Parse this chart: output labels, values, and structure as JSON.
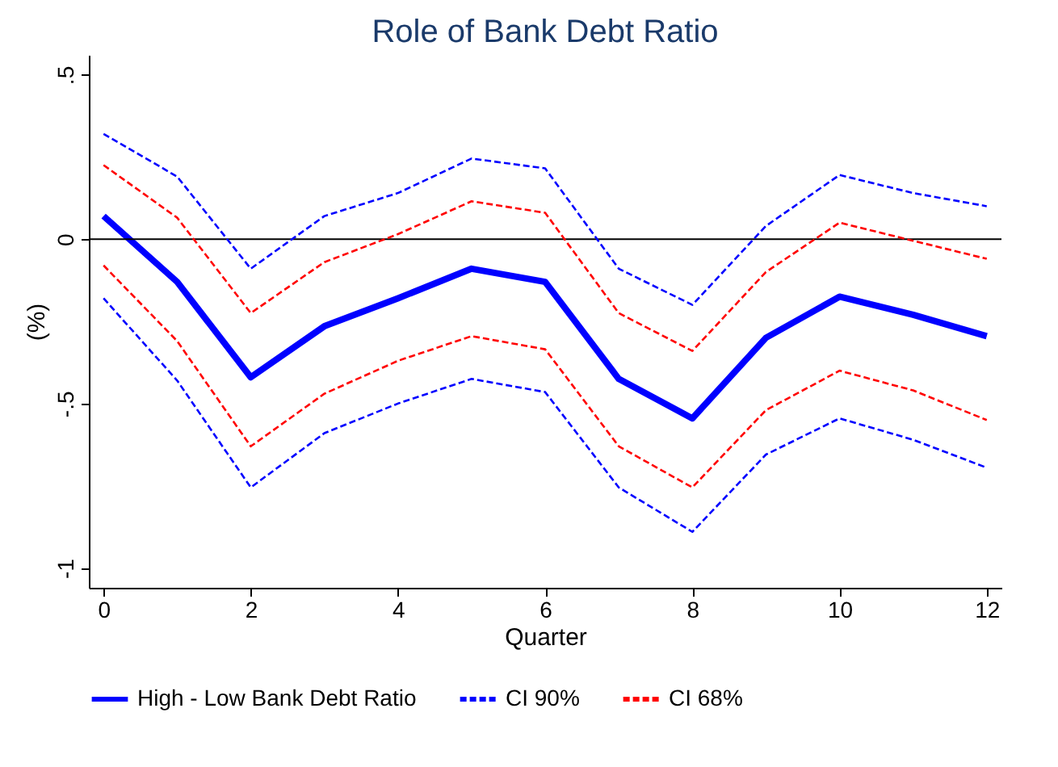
{
  "chart_data": {
    "type": "line",
    "title": "Role of Bank Debt Ratio",
    "xlabel": "Quarter",
    "ylabel": "(%)",
    "x": [
      0,
      1,
      2,
      3,
      4,
      5,
      6,
      7,
      8,
      9,
      10,
      11,
      12
    ],
    "series": [
      {
        "name": "High - Low Bank Debt Ratio",
        "color": "#0000ff",
        "line_style": "solid",
        "values": [
          0.07,
          -0.13,
          -0.42,
          -0.265,
          -0.18,
          -0.09,
          -0.13,
          -0.425,
          -0.545,
          -0.3,
          -0.175,
          -0.23,
          -0.295
        ]
      },
      {
        "name": "CI 90%",
        "color": "#0000ff",
        "line_style": "dashed",
        "values": [
          0.32,
          0.19,
          -0.09,
          0.07,
          0.14,
          0.245,
          0.215,
          -0.09,
          -0.2,
          0.04,
          0.195,
          0.14,
          0.1
        ]
      },
      {
        "color": "#0000ff",
        "line_style": "dashed",
        "values": [
          -0.18,
          -0.43,
          -0.755,
          -0.59,
          -0.5,
          -0.425,
          -0.465,
          -0.755,
          -0.89,
          -0.655,
          -0.545,
          -0.61,
          -0.695
        ]
      },
      {
        "name": "CI 68%",
        "color": "#ff0000",
        "line_style": "dashed",
        "values": [
          0.225,
          0.065,
          -0.225,
          -0.07,
          0.015,
          0.115,
          0.08,
          -0.225,
          -0.34,
          -0.1,
          0.05,
          -0.005,
          -0.06
        ]
      },
      {
        "color": "#ff0000",
        "line_style": "dashed",
        "values": [
          -0.08,
          -0.31,
          -0.63,
          -0.47,
          -0.37,
          -0.295,
          -0.335,
          -0.63,
          -0.755,
          -0.52,
          -0.4,
          -0.46,
          -0.55
        ]
      }
    ],
    "xlim": [
      -0.2,
      12.2
    ],
    "xticks": [
      0,
      2,
      4,
      6,
      8,
      10,
      12
    ],
    "ylim": [
      -1.06,
      0.56
    ],
    "yticks": [
      {
        "value": -1,
        "label": "-1"
      },
      {
        "value": -0.5,
        "label": "-.5"
      },
      {
        "value": 0,
        "label": "0"
      },
      {
        "value": 0.5,
        "label": ".5"
      }
    ],
    "ref_lines": [
      {
        "axis": "y",
        "value": 0,
        "color": "#000000",
        "line_style": "solid"
      }
    ],
    "grid": false,
    "legend": "bottom",
    "marker": "none"
  }
}
